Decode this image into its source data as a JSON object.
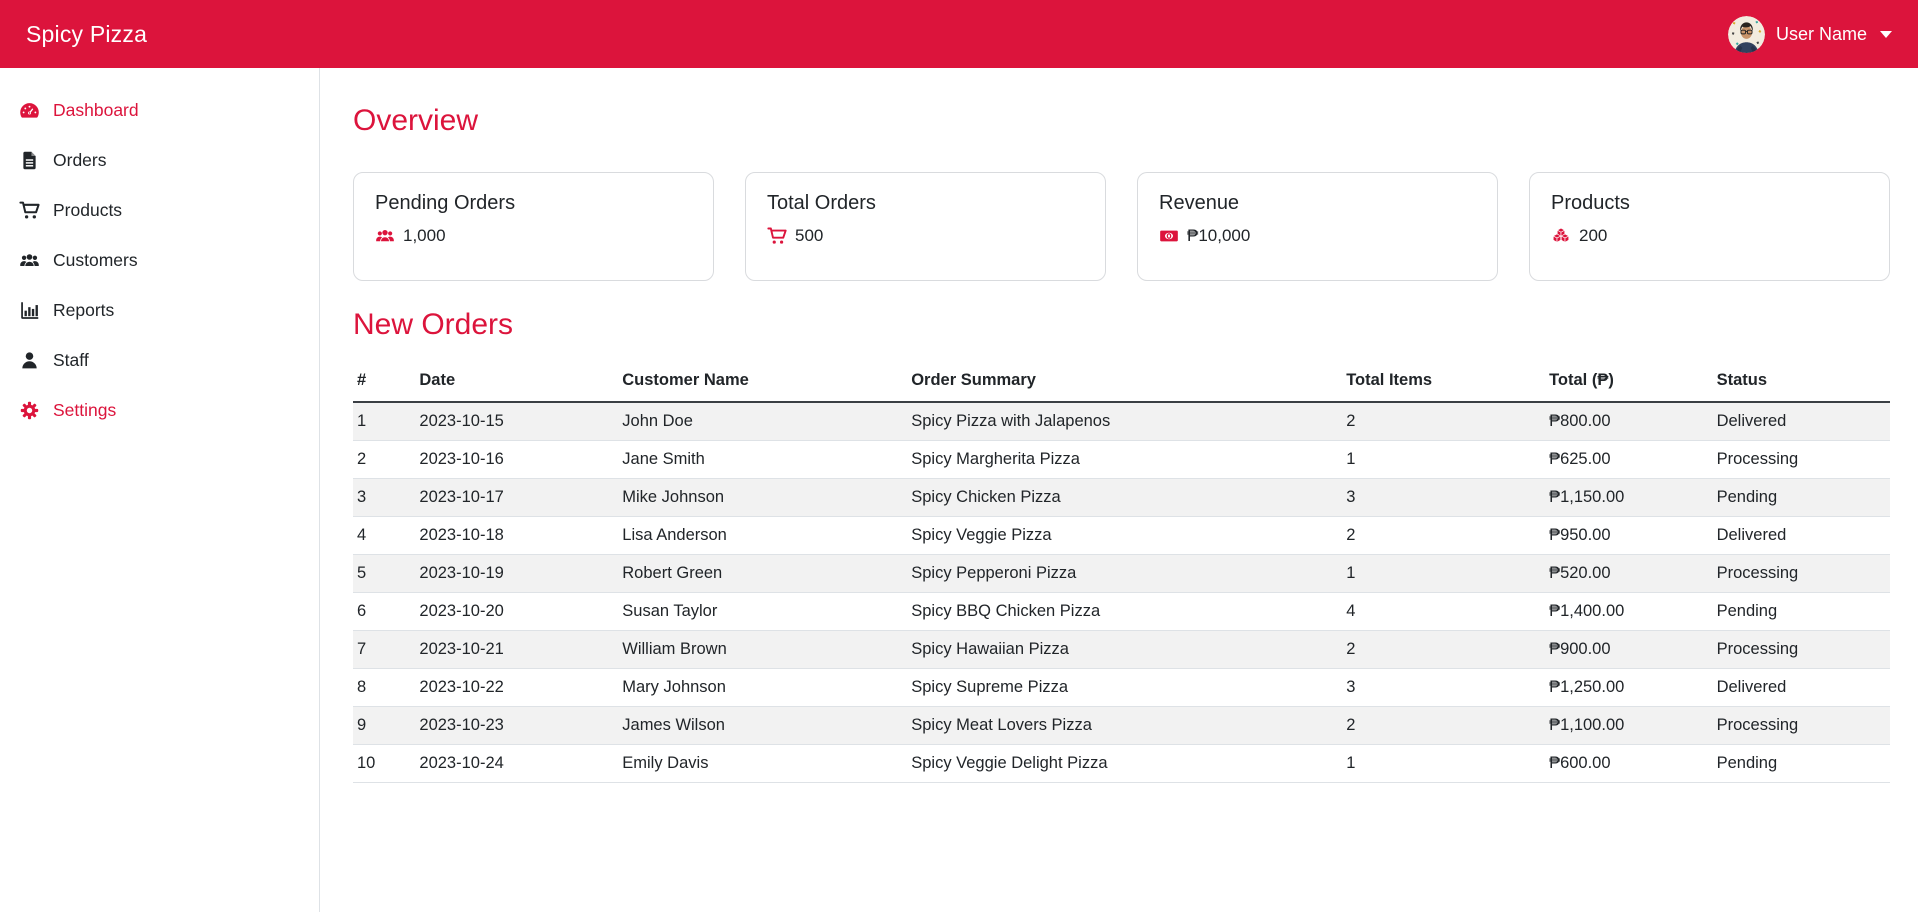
{
  "colors": {
    "accent": "#dc143c",
    "stripe": "#f2f2f2",
    "border": "#dee2e6"
  },
  "header": {
    "brand": "Spicy Pizza",
    "user_name": "User Name",
    "avatar_icon": "user-avatar-photo",
    "caret_icon": "caret-down-icon"
  },
  "sidebar": {
    "items": [
      {
        "label": "Dashboard",
        "icon": "gauge-icon",
        "active": true
      },
      {
        "label": "Orders",
        "icon": "file-icon",
        "active": false
      },
      {
        "label": "Products",
        "icon": "cart-icon",
        "active": false
      },
      {
        "label": "Customers",
        "icon": "users-icon",
        "active": false
      },
      {
        "label": "Reports",
        "icon": "chart-bar-icon",
        "active": false
      },
      {
        "label": "Staff",
        "icon": "user-icon",
        "active": false
      },
      {
        "label": "Settings",
        "icon": "gear-icon",
        "active": true
      }
    ]
  },
  "overview": {
    "title": "Overview",
    "cards": [
      {
        "title": "Pending Orders",
        "value": "1,000",
        "icon": "users-icon"
      },
      {
        "title": "Total Orders",
        "value": "500",
        "icon": "cart-icon"
      },
      {
        "title": "Revenue",
        "value": "₱10,000",
        "icon": "money-bill-icon"
      },
      {
        "title": "Products",
        "value": "200",
        "icon": "cubes-icon"
      }
    ]
  },
  "orders": {
    "title": "New Orders",
    "columns": [
      "#",
      "Date",
      "Customer Name",
      "Order Summary",
      "Total Items",
      "Total (₱)",
      "Status"
    ],
    "rows": [
      [
        "1",
        "2023-10-15",
        "John Doe",
        "Spicy Pizza with Jalapenos",
        "2",
        "₱800.00",
        "Delivered"
      ],
      [
        "2",
        "2023-10-16",
        "Jane Smith",
        "Spicy Margherita Pizza",
        "1",
        "₱625.00",
        "Processing"
      ],
      [
        "3",
        "2023-10-17",
        "Mike Johnson",
        "Spicy Chicken Pizza",
        "3",
        "₱1,150.00",
        "Pending"
      ],
      [
        "4",
        "2023-10-18",
        "Lisa Anderson",
        "Spicy Veggie Pizza",
        "2",
        "₱950.00",
        "Delivered"
      ],
      [
        "5",
        "2023-10-19",
        "Robert Green",
        "Spicy Pepperoni Pizza",
        "1",
        "₱520.00",
        "Processing"
      ],
      [
        "6",
        "2023-10-20",
        "Susan Taylor",
        "Spicy BBQ Chicken Pizza",
        "4",
        "₱1,400.00",
        "Pending"
      ],
      [
        "7",
        "2023-10-21",
        "William Brown",
        "Spicy Hawaiian Pizza",
        "2",
        "₱900.00",
        "Processing"
      ],
      [
        "8",
        "2023-10-22",
        "Mary Johnson",
        "Spicy Supreme Pizza",
        "3",
        "₱1,250.00",
        "Delivered"
      ],
      [
        "9",
        "2023-10-23",
        "James Wilson",
        "Spicy Meat Lovers Pizza",
        "2",
        "₱1,100.00",
        "Processing"
      ],
      [
        "10",
        "2023-10-24",
        "Emily Davis",
        "Spicy Veggie Delight Pizza",
        "1",
        "₱600.00",
        "Pending"
      ]
    ]
  }
}
